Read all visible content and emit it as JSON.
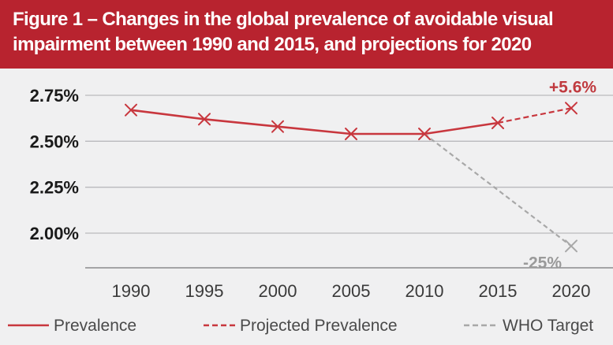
{
  "chart_data": {
    "type": "line",
    "title_line1": "Figure 1 – Changes in the global prevalence of avoidable visual",
    "title_line2": "impairment between 1990 and 2015, and projections for 2020",
    "x": [
      1990,
      1995,
      2000,
      2005,
      2010,
      2015,
      2020
    ],
    "x_tick_labels": [
      "1990",
      "1995",
      "2000",
      "2005",
      "2010",
      "2015",
      "2020"
    ],
    "y_tick_labels": [
      "2.75%",
      "2.50%",
      "2.25%",
      "2.00%"
    ],
    "y_ticks": [
      2.75,
      2.5,
      2.25,
      2.0
    ],
    "ylim": [
      1.8,
      2.9
    ],
    "series": [
      {
        "name": "Prevalence",
        "style": "solid",
        "color": "#c8373e",
        "points": [
          [
            1990,
            2.67
          ],
          [
            1995,
            2.62
          ],
          [
            2000,
            2.58
          ],
          [
            2005,
            2.54
          ],
          [
            2010,
            2.54
          ],
          [
            2015,
            2.6
          ]
        ]
      },
      {
        "name": "Projected Prevalence",
        "style": "dashed",
        "color": "#c8373e",
        "points": [
          [
            2015,
            2.6
          ],
          [
            2020,
            2.68
          ]
        ]
      },
      {
        "name": "WHO Target",
        "style": "dashed",
        "color": "#a8a8a8",
        "points": [
          [
            2010,
            2.54
          ],
          [
            2020,
            1.93
          ]
        ]
      }
    ],
    "annotations": [
      {
        "text": "+5.6%",
        "series": "Projected Prevalence",
        "x": 2020,
        "y": 2.68
      },
      {
        "text": "-25%",
        "series": "WHO Target",
        "x": 2020,
        "y": 1.93
      }
    ],
    "grid": true,
    "legend_position": "bottom"
  }
}
